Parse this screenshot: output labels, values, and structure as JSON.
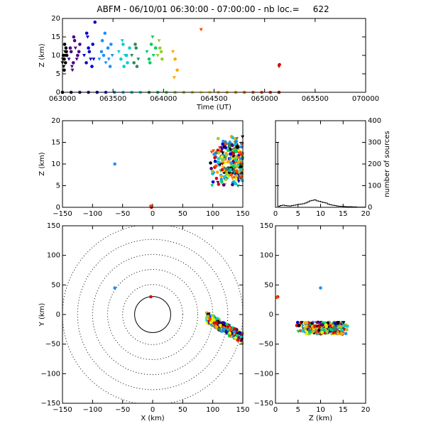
{
  "title": "ABFM - 06/10/01 06:30:00 - 07:00:00 - nb loc.=     622",
  "chart_data": [
    {
      "id": "time_height",
      "type": "scatter",
      "xlabel": "Time (UT)",
      "ylabel": "Z (km)",
      "xlim": [
        63000,
        70000
      ],
      "ylim": [
        0,
        20
      ],
      "xticks": [
        "063000",
        "063500",
        "064000",
        "064500",
        "065000",
        "065500",
        "070000"
      ],
      "yticks": [
        "0",
        "5",
        "10",
        "15",
        "20"
      ],
      "series": [
        {
          "color": "#000000",
          "x": [
            63000,
            63020,
            63040,
            63060,
            63080,
            63100,
            63030,
            63070,
            63050,
            63010,
            63090,
            63040,
            63060
          ],
          "y": [
            8,
            10,
            9,
            11,
            12,
            10,
            7,
            8,
            13,
            9,
            11,
            6,
            10
          ]
        },
        {
          "color": "#4b0082",
          "x": [
            63150,
            63200,
            63250,
            63300,
            63350,
            63400,
            63220,
            63280,
            63180,
            63330,
            63260,
            63380,
            63230
          ],
          "y": [
            9,
            11,
            8,
            12,
            10,
            13,
            7,
            14,
            12,
            9,
            15,
            11,
            6
          ]
        },
        {
          "color": "#0000cd",
          "x": [
            63500,
            63550,
            63600,
            63650,
            63700,
            63750,
            63580,
            63620,
            63680,
            63720,
            63560
          ],
          "y": [
            10,
            8,
            12,
            9,
            13,
            19,
            15,
            11,
            7,
            9,
            16
          ]
        },
        {
          "color": "#1e90ff",
          "x": [
            63850,
            63900,
            63950,
            64000,
            64050,
            64100,
            64150,
            63920,
            63980,
            64070,
            64120
          ],
          "y": [
            9,
            11,
            10,
            8,
            12,
            7,
            10,
            14,
            16,
            9,
            13
          ]
        },
        {
          "color": "#00ced1",
          "x": [
            64300,
            64350,
            64400,
            64450,
            64500,
            64550,
            64380,
            64420,
            64480
          ],
          "y": [
            11,
            9,
            13,
            10,
            8,
            12,
            14,
            7,
            10
          ]
        },
        {
          "color": "#2e8b57",
          "x": [
            64600,
            64650,
            64700,
            64750,
            64680,
            64720
          ],
          "y": [
            10,
            8,
            12,
            9,
            13,
            7
          ]
        },
        {
          "color": "#00cc66",
          "x": [
            64950,
            65000,
            65050,
            65100,
            65150,
            65020,
            65080
          ],
          "y": [
            11,
            9,
            13,
            10,
            12,
            8,
            15
          ]
        },
        {
          "color": "#9acd32",
          "x": [
            65200,
            65250,
            65300,
            65230,
            65280
          ],
          "y": [
            10,
            12,
            9,
            14,
            11
          ]
        },
        {
          "color": "#ffa500",
          "x": [
            65550,
            65600,
            65650,
            65580
          ],
          "y": [
            11,
            9,
            6,
            4
          ]
        },
        {
          "color": "#ff4500",
          "x": [
            66200
          ],
          "y": [
            17
          ]
        },
        {
          "color": "#dd0000",
          "x": [
            68000,
            68010
          ],
          "y": [
            7,
            7.5
          ]
        }
      ],
      "baseline_points": {
        "y": 0,
        "x": [
          63000,
          63200,
          63400,
          63600,
          63800,
          64000,
          64200,
          64400,
          64600,
          64800,
          65000,
          65200,
          65400,
          65600,
          65800,
          66000,
          66200,
          66400,
          66600,
          66800,
          67000,
          67200,
          67400,
          67600,
          67800,
          68000
        ],
        "colors": [
          "#000000",
          "#2f004f",
          "#4b0082",
          "#3a00aa",
          "#0000cd",
          "#0033ff",
          "#1e90ff",
          "#00bfff",
          "#00ced1",
          "#00e5c8",
          "#2e8b57",
          "#00cc66",
          "#33dd33",
          "#7fdd22",
          "#9acd32",
          "#c8d400",
          "#eeee00",
          "#ffd700",
          "#ffb300",
          "#ffa500",
          "#ff8c00",
          "#ff7000",
          "#ff5500",
          "#ff4500",
          "#ff2200",
          "#dd0000"
        ]
      }
    },
    {
      "id": "x_z",
      "type": "scatter",
      "xlabel": "",
      "ylabel": "Z (km)",
      "xlim": [
        -150,
        150
      ],
      "ylim": [
        0,
        20
      ],
      "xticks": [
        "−150",
        "−100",
        "−50",
        "0",
        "50",
        "100",
        "150"
      ],
      "yticks": [
        "0",
        "5",
        "10",
        "15",
        "20"
      ],
      "outliers": [
        {
          "x": -63,
          "y": 10,
          "color": "#1e90ff"
        },
        {
          "x": -2,
          "y": 0,
          "color": "#dd0000"
        },
        {
          "x": -3,
          "y": 0.3,
          "color": "#ff4500"
        }
      ],
      "cluster": {
        "x_range": [
          95,
          150
        ],
        "y_range": [
          2,
          19
        ]
      }
    },
    {
      "id": "height_histogram",
      "type": "line",
      "xlabel": "",
      "ylabel": "number of sources",
      "xlim": [
        0,
        20
      ],
      "ylim": [
        0,
        400
      ],
      "xticks": [
        "0",
        "5",
        "10",
        "15",
        "20"
      ],
      "yticks": [
        "0",
        "100",
        "200",
        "300",
        "400"
      ],
      "x": [
        0,
        0.5,
        1,
        1.5,
        2,
        2.5,
        3,
        3.5,
        4,
        4.5,
        5,
        5.5,
        6,
        6.5,
        7,
        7.5,
        8,
        8.5,
        9,
        9.5,
        10,
        10.5,
        11,
        11.5,
        12,
        12.5,
        13,
        13.5,
        14,
        14.5,
        15,
        15.5,
        16,
        16.5,
        17,
        17.5,
        18,
        18.5,
        19,
        19.5
      ],
      "values": [
        300,
        5,
        8,
        10,
        8,
        7,
        6,
        8,
        10,
        12,
        14,
        15,
        17,
        20,
        25,
        30,
        32,
        35,
        30,
        28,
        25,
        22,
        20,
        15,
        12,
        10,
        8,
        6,
        5,
        5,
        4,
        3,
        3,
        3,
        2,
        2,
        1,
        1,
        1,
        1
      ]
    },
    {
      "id": "x_y",
      "type": "scatter",
      "xlabel": "X (km)",
      "ylabel": "Y (km)",
      "xlim": [
        -150,
        150
      ],
      "ylim": [
        -150,
        150
      ],
      "xticks": [
        "−150",
        "−100",
        "−50",
        "0",
        "50",
        "100",
        "150"
      ],
      "yticks": [
        "−150",
        "−100",
        "−50",
        "0",
        "50",
        "100",
        "150"
      ],
      "range_rings_km": [
        30,
        50,
        75,
        100,
        125,
        150
      ],
      "outliers": [
        {
          "x": -63,
          "y": 45,
          "color": "#1e90ff"
        },
        {
          "x": -3,
          "y": 30,
          "color": "#dd0000"
        }
      ],
      "cluster": {
        "x_range": [
          90,
          150
        ],
        "y_range": [
          -55,
          0
        ]
      }
    },
    {
      "id": "z_y",
      "type": "scatter",
      "xlabel": "Z (km)",
      "ylabel": "",
      "xlim": [
        0,
        20
      ],
      "ylim": [
        -150,
        150
      ],
      "xticks": [
        "0",
        "5",
        "10",
        "15",
        "20"
      ],
      "yticks": [
        "−150",
        "−100",
        "−50",
        "0",
        "50",
        "100",
        "150"
      ],
      "outliers": [
        {
          "x": 10,
          "y": 45,
          "color": "#1e90ff"
        },
        {
          "x": 0.5,
          "y": 30,
          "color": "#dd0000"
        },
        {
          "x": 0.3,
          "y": 29,
          "color": "#ff4500"
        }
      ],
      "cluster": {
        "x_range": [
          3,
          18
        ],
        "y_range": [
          -45,
          -5
        ]
      }
    }
  ]
}
